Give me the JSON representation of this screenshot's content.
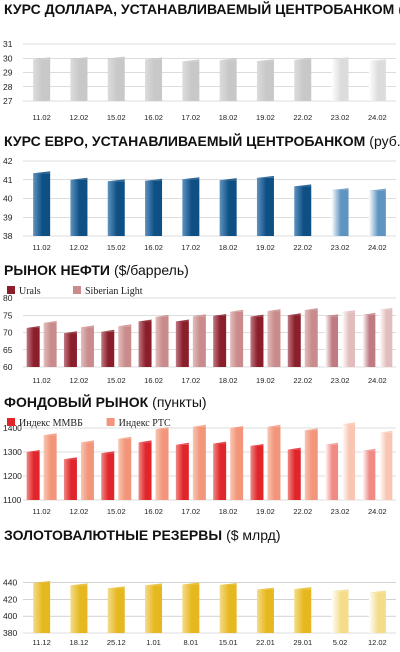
{
  "chart_data": [
    {
      "type": "bar",
      "title": "КУРС ДОЛЛАРА, УСТАНАВЛИВАЕМЫЙ ЦЕНТРОБАНКОМ",
      "unit": "(руб./$)",
      "categories": [
        "11.02",
        "12.02",
        "15.02",
        "16.02",
        "17.02",
        "18.02",
        "19.02",
        "22.02",
        "23.02",
        "24.02"
      ],
      "values": [
        29.93,
        29.95,
        29.98,
        29.92,
        29.78,
        29.87,
        29.8,
        29.88,
        29.95,
        29.8
      ],
      "ylim": [
        27,
        31
      ],
      "yticks": [
        27,
        28,
        29,
        30,
        31
      ],
      "grid": true,
      "colors": {
        "bar": "#c8c8c8",
        "bar_light": "#dcdcdc"
      }
    },
    {
      "type": "bar",
      "title": "КУРС ЕВРО, УСТАНАВЛИВАЕМЫЙ ЦЕНТРОБАНКОМ",
      "unit": "(руб./€)",
      "categories": [
        "11.02",
        "12.02",
        "15.02",
        "16.02",
        "17.02",
        "18.02",
        "19.02",
        "22.02",
        "23.02",
        "24.02"
      ],
      "values": [
        41.35,
        41.0,
        40.92,
        40.95,
        41.03,
        40.98,
        41.1,
        40.65,
        40.45,
        40.42
      ],
      "ylim": [
        38,
        42
      ],
      "yticks": [
        38,
        39,
        40,
        41,
        42
      ],
      "grid": true,
      "colors": {
        "bar": "#0e4f84",
        "bar_light": "#5f93c0"
      }
    },
    {
      "type": "bar",
      "title": "РЫНОК НЕФТИ",
      "unit": "($/баррель)",
      "categories": [
        "11.02",
        "12.02",
        "15.02",
        "16.02",
        "17.02",
        "18.02",
        "19.02",
        "22.02",
        "23.02",
        "24.02"
      ],
      "series": [
        {
          "name": "Urals",
          "values": [
            71.3,
            69.8,
            70.2,
            73.2,
            73.2,
            74.8,
            74.6,
            75.0,
            74.7,
            75.1
          ]
        },
        {
          "name": "Siberian Light",
          "values": [
            72.8,
            71.5,
            71.8,
            74.5,
            74.7,
            76.0,
            76.2,
            76.5,
            75.9,
            76.6
          ]
        }
      ],
      "ylim": [
        60,
        80
      ],
      "yticks": [
        60,
        65,
        70,
        75,
        80
      ],
      "grid": true,
      "legend": "top-left",
      "colors": {
        "series": [
          "#8a1e2b",
          "#c98b8b"
        ],
        "series_light": [
          "#c07a82",
          "#e2bdbd"
        ]
      }
    },
    {
      "type": "bar",
      "title": "ФОНДОВЫЙ РЫНОК",
      "unit": "(пункты)",
      "categories": [
        "11.02",
        "12.02",
        "15.02",
        "16.02",
        "17.02",
        "18.02",
        "19.02",
        "22.02",
        "23.02",
        "24.02"
      ],
      "series": [
        {
          "name": "Индекс ММВБ",
          "values": [
            1300,
            1270,
            1295,
            1340,
            1330,
            1335,
            1325,
            1310,
            1330,
            1305
          ]
        },
        {
          "name": "Индекс РТС",
          "values": [
            1370,
            1340,
            1355,
            1395,
            1405,
            1400,
            1405,
            1390,
            1415,
            1380
          ]
        }
      ],
      "ylim": [
        1100,
        1400
      ],
      "yticks": [
        1100,
        1200,
        1300,
        1400
      ],
      "grid": true,
      "legend": "top-left",
      "colors": {
        "series": [
          "#e0262b",
          "#f2957a"
        ],
        "series_light": [
          "#f08a85",
          "#f8c6b2"
        ]
      }
    },
    {
      "type": "bar",
      "title": "ЗОЛОТОВАЛЮТНЫЕ РЕЗЕРВЫ",
      "unit": "($ млрд)",
      "categories": [
        "11.12",
        "18.12",
        "25.12",
        "1.01",
        "8.01",
        "15.01",
        "22.01",
        "29.01",
        "5.02",
        "12.02"
      ],
      "values": [
        439.5,
        436.5,
        433.0,
        436.5,
        437.5,
        437.0,
        431.5,
        432.0,
        429.5,
        428.0
      ],
      "ylim": [
        380,
        450
      ],
      "yticks": [
        380,
        400,
        420,
        440
      ],
      "grid": true,
      "colors": {
        "bar": "#e6b820",
        "bar_light": "#f4dc8a"
      }
    }
  ]
}
